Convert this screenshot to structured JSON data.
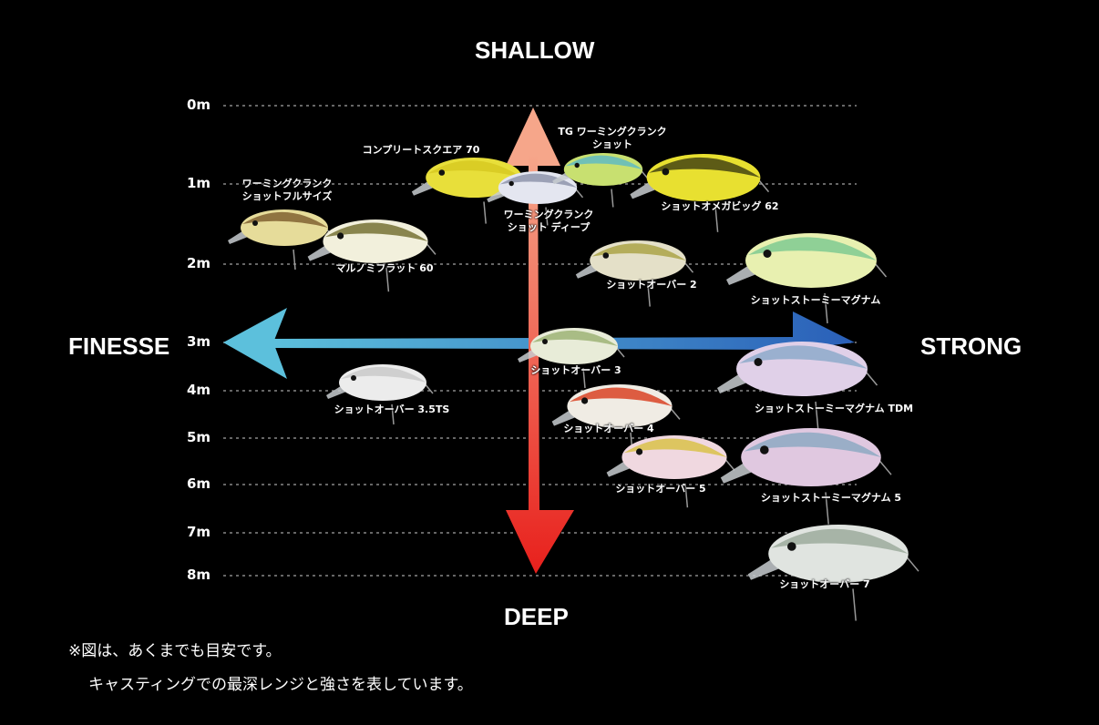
{
  "axes": {
    "top": "SHALLOW",
    "bottom": "DEEP",
    "left": "FINESSE",
    "right": "STRONG"
  },
  "depths": [
    "0m",
    "1m",
    "2m",
    "3m",
    "4m",
    "5m",
    "6m",
    "7m",
    "8m"
  ],
  "colors": {
    "up_arrow": "#f6a68a",
    "down_arrow": "#e8201c",
    "left_arrow": "#5cc0dc",
    "right_arrow": "#2a5fb8"
  },
  "lures": [
    {
      "name": "ワーミングクランク\nショットフルサイズ",
      "body": "#e6dc9a",
      "back": "#7a5a2a"
    },
    {
      "name": "コンプリートスクエア 70",
      "body": "#e8df3a",
      "back": "#d6c820"
    },
    {
      "name": "マルノミフラット 60",
      "body": "#f2f0dc",
      "back": "#6e6a2a"
    },
    {
      "name": "ワーミングクランク\nショット ディープ",
      "body": "#e4e6f0",
      "back": "#8a90a8"
    },
    {
      "name": "TG ワーミングクランク\nショット",
      "body": "#c8e070",
      "back": "#5ab8c8"
    },
    {
      "name": "ショットオメガビッグ 62",
      "body": "#e8e030",
      "back": "#3a3a10"
    },
    {
      "name": "ショットオーバー 2",
      "body": "#e4e0c8",
      "back": "#a8a040"
    },
    {
      "name": "ショットストーミーマグナム",
      "body": "#e8f0b0",
      "back": "#78c890"
    },
    {
      "name": "ショットオーバー 3",
      "body": "#e8ecd8",
      "back": "#98b070"
    },
    {
      "name": "ショットオーバー 3.5TS",
      "body": "#ececec",
      "back": "#c8c8c8"
    },
    {
      "name": "ショットストーミーマグナム TDM",
      "body": "#e0d0e8",
      "back": "#88a8c8"
    },
    {
      "name": "ショットオーバー 4",
      "body": "#f0ece4",
      "back": "#d83818"
    },
    {
      "name": "ショットオーバー 5",
      "body": "#f0d8e0",
      "back": "#d8c040"
    },
    {
      "name": "ショットストーミーマグナム 5",
      "body": "#e0c8e0",
      "back": "#88a8c0"
    },
    {
      "name": "ショットオーバー 7",
      "body": "#e0e4e0",
      "back": "#98a898"
    }
  ],
  "notes": [
    "※図は、あくまでも目安です。",
    "キャスティングでの最深レンジと強さを表しています。"
  ]
}
